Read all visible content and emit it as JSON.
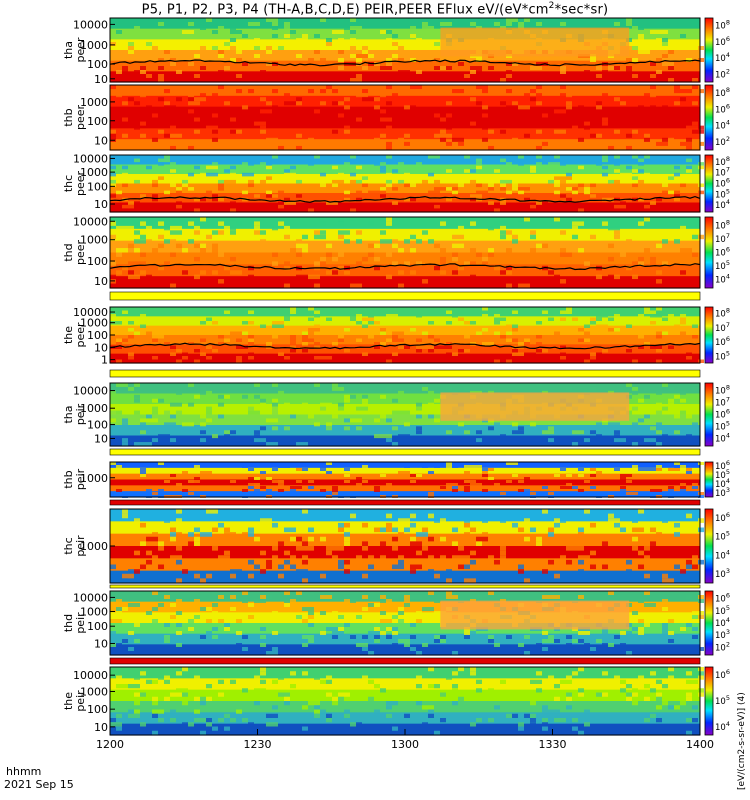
{
  "title": {
    "prefix": "P5, P1, P2, P3, P4 (TH-A,B,C,D,E) PEIR,PEER EFlux eV/(eV*cm",
    "sup": "2",
    "suffix": "*sec*sr)"
  },
  "footer": {
    "row1": "hhmm",
    "row2": "2021 Sep 15"
  },
  "colorbar_title": "[eV/(cm2-s-sr-eV)] (4)",
  "chart_data": {
    "type": "heatmap",
    "x": {
      "label": "hhmm",
      "date": "2021 Sep 15",
      "ticks": [
        "1200",
        "1230",
        "1300",
        "1330",
        "1400"
      ],
      "range": [
        "12:00",
        "14:00"
      ]
    },
    "z": {
      "label": "EFlux eV/(eV*cm2*sec*sr)",
      "scale": "log",
      "colormap": "rainbow"
    },
    "panels": [
      {
        "name": "tha peer",
        "probe": "tha",
        "species": "peer",
        "ylabel": [
          "tha",
          "peer"
        ],
        "yticks": [
          "10000",
          "1000",
          "100",
          "10"
        ],
        "cbar_ticks": [
          "10",
          "10",
          "10",
          "10"
        ],
        "cbar_exps": [
          "8",
          "6",
          "4",
          "2"
        ]
      },
      {
        "name": "thb peer",
        "probe": "thb",
        "species": "peer",
        "ylabel": [
          "thb",
          "peer"
        ],
        "yticks": [
          "1000",
          "100",
          "10"
        ],
        "cbar_ticks": [
          "10",
          "10",
          "10",
          "10"
        ],
        "cbar_exps": [
          "8",
          "6",
          "4",
          "2"
        ]
      },
      {
        "name": "thc peer",
        "probe": "thc",
        "species": "peer",
        "ylabel": [
          "thc",
          "peer"
        ],
        "yticks": [
          "10000",
          "1000",
          "100",
          "10"
        ],
        "cbar_ticks": [
          "10",
          "10",
          "10",
          "10",
          "10"
        ],
        "cbar_exps": [
          "8",
          "7",
          "6",
          "5",
          "4"
        ]
      },
      {
        "name": "thd peer",
        "probe": "thd",
        "species": "peer",
        "ylabel": [
          "thd",
          "peer"
        ],
        "yticks": [
          "10000",
          "1000",
          "100",
          "10"
        ],
        "cbar_ticks": [
          "10",
          "10",
          "10",
          "10",
          "10"
        ],
        "cbar_exps": [
          "8",
          "7",
          "6",
          "5",
          "4"
        ]
      },
      {
        "name": "the peer",
        "probe": "the",
        "species": "peer",
        "ylabel": [
          "the",
          "peer"
        ],
        "yticks": [
          "10000",
          "1000",
          "100",
          "10",
          "1"
        ],
        "cbar_ticks": [
          "10",
          "10",
          "10",
          "10"
        ],
        "cbar_exps": [
          "8",
          "7",
          "6",
          "5"
        ]
      },
      {
        "name": "tha peir",
        "probe": "tha",
        "species": "peir",
        "ylabel": [
          "tha",
          "peir"
        ],
        "yticks": [
          "10000",
          "1000",
          "100",
          "10"
        ],
        "cbar_ticks": [
          "10",
          "10",
          "10",
          "10",
          "10"
        ],
        "cbar_exps": [
          "8",
          "7",
          "6",
          "5",
          "4"
        ]
      },
      {
        "name": "thb peir",
        "probe": "thb",
        "species": "peir",
        "ylabel": [
          "thb",
          "peir"
        ],
        "yticks": [
          "1000"
        ],
        "cbar_ticks": [
          "10",
          "10",
          "10",
          "10"
        ],
        "cbar_exps": [
          "6",
          "5",
          "4",
          "3"
        ]
      },
      {
        "name": "thc peir",
        "probe": "thc",
        "species": "peir",
        "ylabel": [
          "thc",
          "peir"
        ],
        "yticks": [
          "1000"
        ],
        "cbar_ticks": [
          "10",
          "10",
          "10",
          "10"
        ],
        "cbar_exps": [
          "6",
          "5",
          "4",
          "3"
        ]
      },
      {
        "name": "thd peir",
        "probe": "thd",
        "species": "peir",
        "ylabel": [
          "thd",
          "peir"
        ],
        "yticks": [
          "10000",
          "1000",
          "100",
          "10"
        ],
        "cbar_ticks": [
          "10",
          "10",
          "10",
          "10",
          "10"
        ],
        "cbar_exps": [
          "6",
          "5",
          "4",
          "3",
          "2"
        ]
      },
      {
        "name": "the peir",
        "probe": "the",
        "species": "peir",
        "ylabel": [
          "the",
          "peir"
        ],
        "yticks": [
          "10000",
          "1000",
          "100",
          "10"
        ],
        "cbar_ticks": [
          "10",
          "10",
          "10"
        ],
        "cbar_exps": [
          "6",
          "5",
          "4"
        ]
      }
    ]
  }
}
